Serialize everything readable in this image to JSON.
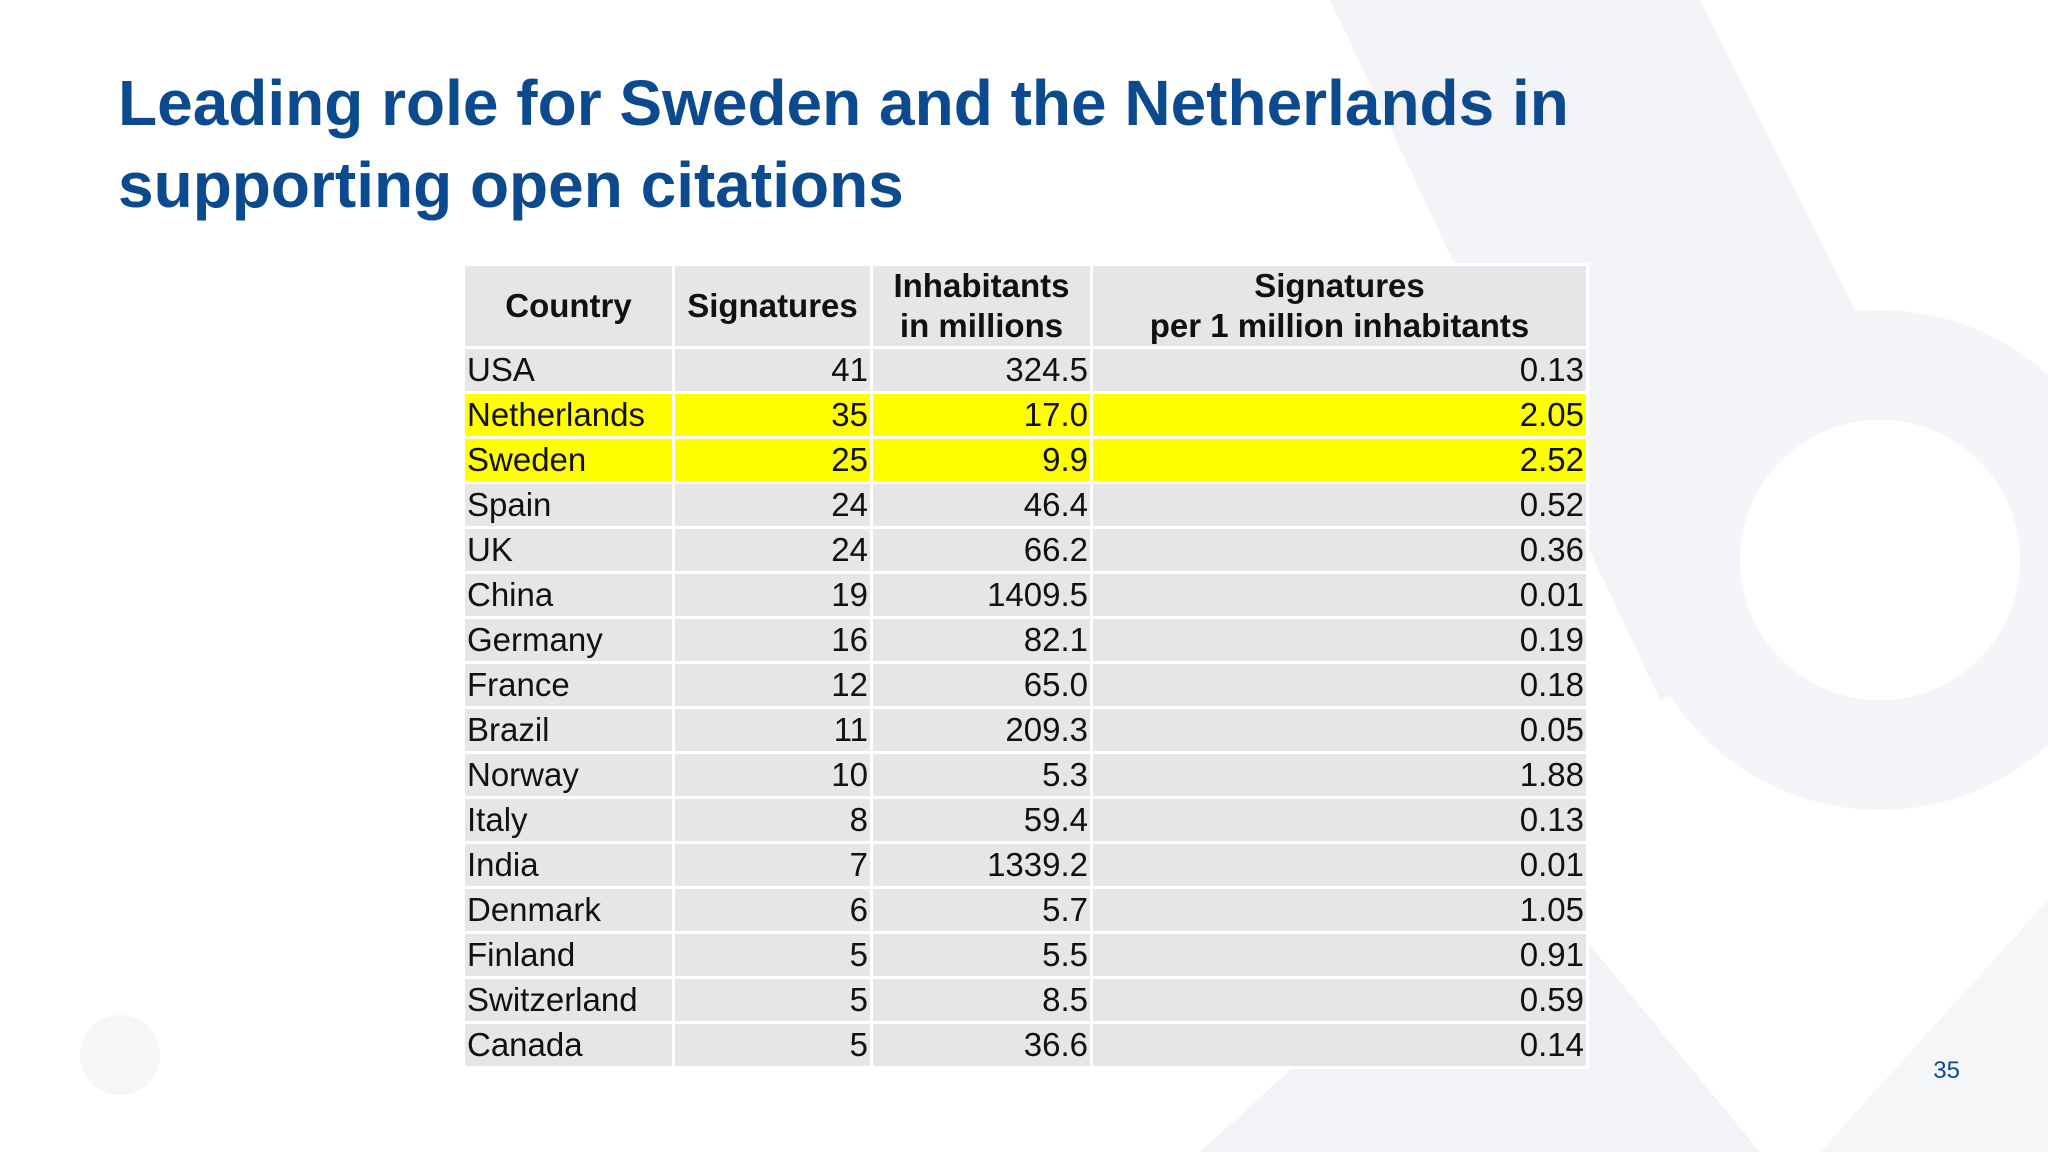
{
  "slide": {
    "title": "Leading role for Sweden and the Netherlands in supporting open citations",
    "page_number": "35"
  },
  "table": {
    "headers": {
      "country": "Country",
      "signatures": "Signatures",
      "inhabitants_line1": "Inhabitants",
      "inhabitants_line2": "in millions",
      "per_million_line1": "Signatures",
      "per_million_line2": "per 1 million inhabitants"
    },
    "highlight_color": "#ffff00",
    "rows": [
      {
        "country": "USA",
        "signatures": "41",
        "inhabitants": "324.5",
        "per_million": "0.13",
        "highlighted": false
      },
      {
        "country": "Netherlands",
        "signatures": "35",
        "inhabitants": "17.0",
        "per_million": "2.05",
        "highlighted": true
      },
      {
        "country": "Sweden",
        "signatures": "25",
        "inhabitants": "9.9",
        "per_million": "2.52",
        "highlighted": true
      },
      {
        "country": "Spain",
        "signatures": "24",
        "inhabitants": "46.4",
        "per_million": "0.52",
        "highlighted": false
      },
      {
        "country": "UK",
        "signatures": "24",
        "inhabitants": "66.2",
        "per_million": "0.36",
        "highlighted": false
      },
      {
        "country": "China",
        "signatures": "19",
        "inhabitants": "1409.5",
        "per_million": "0.01",
        "highlighted": false
      },
      {
        "country": "Germany",
        "signatures": "16",
        "inhabitants": "82.1",
        "per_million": "0.19",
        "highlighted": false
      },
      {
        "country": "France",
        "signatures": "12",
        "inhabitants": "65.0",
        "per_million": "0.18",
        "highlighted": false
      },
      {
        "country": "Brazil",
        "signatures": "11",
        "inhabitants": "209.3",
        "per_million": "0.05",
        "highlighted": false
      },
      {
        "country": "Norway",
        "signatures": "10",
        "inhabitants": "5.3",
        "per_million": "1.88",
        "highlighted": false
      },
      {
        "country": "Italy",
        "signatures": "8",
        "inhabitants": "59.4",
        "per_million": "0.13",
        "highlighted": false
      },
      {
        "country": "India",
        "signatures": "7",
        "inhabitants": "1339.2",
        "per_million": "0.01",
        "highlighted": false
      },
      {
        "country": "Denmark",
        "signatures": "6",
        "inhabitants": "5.7",
        "per_million": "1.05",
        "highlighted": false
      },
      {
        "country": "Finland",
        "signatures": "5",
        "inhabitants": "5.5",
        "per_million": "0.91",
        "highlighted": false
      },
      {
        "country": "Switzerland",
        "signatures": "5",
        "inhabitants": "8.5",
        "per_million": "0.59",
        "highlighted": false
      },
      {
        "country": "Canada",
        "signatures": "5",
        "inhabitants": "36.6",
        "per_million": "0.14",
        "highlighted": false
      }
    ]
  }
}
